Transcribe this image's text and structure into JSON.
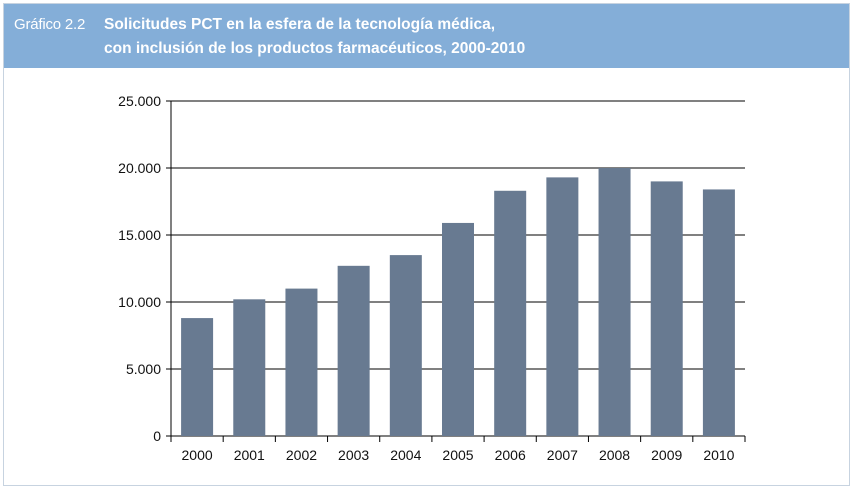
{
  "header": {
    "figure_label": "Gráfico 2.2",
    "title_line1": "Solicitudes PCT en la esfera de la tecnología médica,",
    "title_line2": "con inclusión de los productos farmacéuticos, 2000-2010"
  },
  "colors": {
    "header_bg": "#84aed8",
    "bar": "#687a91",
    "grid": "#000000"
  },
  "chart_data": {
    "type": "bar",
    "title": "Solicitudes PCT en la esfera de la tecnología médica, con inclusión de los productos farmacéuticos, 2000-2010",
    "categories": [
      "2000",
      "2001",
      "2002",
      "2003",
      "2004",
      "2005",
      "2006",
      "2007",
      "2008",
      "2009",
      "2010"
    ],
    "values": [
      8800,
      10200,
      11000,
      12700,
      13500,
      15900,
      18300,
      19300,
      20000,
      19000,
      18400
    ],
    "ylim": [
      0,
      25000
    ],
    "yticks": [
      0,
      5000,
      10000,
      15000,
      20000,
      25000
    ],
    "ytick_labels": [
      "0",
      "5.000",
      "10.000",
      "15.000",
      "20.000",
      "25.000"
    ],
    "xlabel": "",
    "ylabel": "",
    "grid": "horizontal",
    "legend": "none"
  }
}
